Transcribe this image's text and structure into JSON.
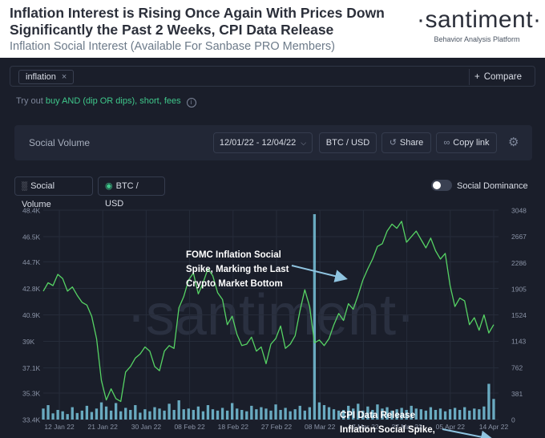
{
  "header": {
    "title": "Inflation Interest is Rising Once Again With Prices Down Significantly the Past 2 Weeks, CPI Data Release",
    "subtitle": "Inflation Social Interest (Available For Sanbase PRO Members)",
    "brand_name": "·santiment·",
    "brand_tagline": "Behavior Analysis Platform"
  },
  "search": {
    "chip_label": "inflation",
    "chip_close": "×",
    "compare_icon": "+",
    "compare_label": "Compare"
  },
  "hint": {
    "prefix": "Try out",
    "suggestion": "buy AND (dip OR dips), short, fees",
    "info_icon": "i"
  },
  "toolbar": {
    "panel_title": "Social Volume",
    "date_range": "12/01/22 - 12/04/22",
    "pair": "BTC / USD",
    "share_label": "Share",
    "copy_label": "Copy link",
    "gear_icon": "⚙"
  },
  "legend": {
    "social_volume": "Social Volume",
    "btc_usd": "BTC / USD",
    "social_dominance": "Social Dominance"
  },
  "colors": {
    "price_line": "#56d364",
    "volume_bars": "#78c3da",
    "annotation": "#ffffff",
    "arrow": "#8fc4e0",
    "accent": "#3fc88b"
  },
  "chart_data": {
    "type": "line",
    "title": "Social Volume",
    "watermark": "·santiment·",
    "x_tick_labels": [
      "12 Jan 22",
      "21 Jan 22",
      "30 Jan 22",
      "08 Feb 22",
      "18 Feb 22",
      "27 Feb 22",
      "08 Mar 22",
      "17 Mar 22",
      "27 Mar 22",
      "05 Apr 22",
      "14 Apr 22"
    ],
    "y_left_tick_labels": [
      "48.4K",
      "46.5K",
      "44.7K",
      "42.8K",
      "40.9K",
      "39K",
      "37.1K",
      "35.3K",
      "33.4K"
    ],
    "y_left_ticks": [
      48400,
      46500,
      44700,
      42800,
      40900,
      39000,
      37100,
      35300,
      33400
    ],
    "y_left_range": [
      33400,
      48400
    ],
    "y_right_tick_labels": [
      "3048",
      "2667",
      "2286",
      "1905",
      "1524",
      "1143",
      "762",
      "381",
      "0"
    ],
    "y_right_ticks": [
      3048,
      2667,
      2286,
      1905,
      1524,
      1143,
      762,
      381,
      0
    ],
    "y_right_range": [
      0,
      3048
    ],
    "x_range": [
      0,
      94
    ],
    "series": [
      {
        "name": "BTC / USD",
        "axis": "left",
        "type": "line",
        "x": [
          0,
          1,
          2,
          3,
          4,
          5,
          6,
          7,
          8,
          9,
          10,
          11,
          12,
          13,
          14,
          15,
          16,
          17,
          18,
          19,
          20,
          21,
          22,
          23,
          24,
          25,
          26,
          27,
          28,
          29,
          30,
          31,
          32,
          33,
          34,
          35,
          36,
          37,
          38,
          39,
          40,
          41,
          42,
          43,
          44,
          45,
          46,
          47,
          48,
          49,
          50,
          51,
          52,
          53,
          54,
          55,
          56,
          57,
          58,
          59,
          60,
          61,
          62,
          63,
          64,
          65,
          66,
          67,
          68,
          69,
          70,
          71,
          72,
          73,
          74,
          75,
          76,
          77,
          78,
          79,
          80,
          81,
          82,
          83,
          84,
          85,
          86,
          87,
          88,
          89,
          90,
          91,
          92,
          93
        ],
        "values": [
          42600,
          43200,
          43000,
          43800,
          43500,
          42600,
          42900,
          42300,
          41800,
          41600,
          40800,
          39200,
          36200,
          34800,
          35600,
          34900,
          34700,
          36800,
          37200,
          37800,
          38100,
          38600,
          38300,
          37200,
          36900,
          38300,
          38700,
          38500,
          41400,
          42200,
          43400,
          43900,
          42400,
          43200,
          44200,
          43700,
          42500,
          42000,
          40200,
          40800,
          39500,
          38700,
          38800,
          39300,
          38300,
          38600,
          37400,
          38800,
          39200,
          40100,
          38500,
          38800,
          39400,
          41200,
          42700,
          41500,
          38900,
          39100,
          38700,
          39200,
          40200,
          41000,
          40500,
          41700,
          41300,
          42300,
          43400,
          44200,
          44900,
          45800,
          46000,
          46900,
          47400,
          47100,
          47600,
          46100,
          46500,
          46900,
          46300,
          45700,
          46400,
          45500,
          44900,
          45300,
          43000,
          41500,
          42100,
          41900,
          40200,
          40700,
          39800,
          40900,
          39600,
          40200
        ]
      },
      {
        "name": "Social Volume",
        "axis": "right",
        "type": "bar",
        "x": [
          0,
          1,
          2,
          3,
          4,
          5,
          6,
          7,
          8,
          9,
          10,
          11,
          12,
          13,
          14,
          15,
          16,
          17,
          18,
          19,
          20,
          21,
          22,
          23,
          24,
          25,
          26,
          27,
          28,
          29,
          30,
          31,
          32,
          33,
          34,
          35,
          36,
          37,
          38,
          39,
          40,
          41,
          42,
          43,
          44,
          45,
          46,
          47,
          48,
          49,
          50,
          51,
          52,
          53,
          54,
          55,
          56,
          57,
          58,
          59,
          60,
          61,
          62,
          63,
          64,
          65,
          66,
          67,
          68,
          69,
          70,
          71,
          72,
          73,
          74,
          75,
          76,
          77,
          78,
          79,
          80,
          81,
          82,
          83,
          84,
          85,
          86,
          87,
          88,
          89,
          90,
          91,
          92,
          93
        ],
        "values": [
          160,
          210,
          90,
          140,
          120,
          80,
          180,
          95,
          130,
          200,
          110,
          160,
          250,
          190,
          130,
          240,
          120,
          170,
          140,
          210,
          100,
          150,
          120,
          180,
          160,
          130,
          230,
          140,
          280,
          150,
          160,
          140,
          190,
          120,
          210,
          150,
          130,
          170,
          130,
          240,
          160,
          140,
          120,
          200,
          150,
          180,
          160,
          130,
          220,
          140,
          170,
          120,
          150,
          200,
          130,
          180,
          2990,
          250,
          210,
          180,
          150,
          130,
          140,
          200,
          160,
          230,
          130,
          190,
          140,
          220,
          160,
          180,
          130,
          150,
          170,
          140,
          200,
          160,
          150,
          130,
          180,
          140,
          160,
          120,
          150,
          170,
          140,
          180,
          130,
          160,
          150,
          190,
          520,
          300
        ]
      }
    ],
    "annotations": [
      {
        "text": "FOMC Inflation Social Spike, Marking the Last Crypto Market Bottom"
      },
      {
        "text": "CPI Data Release Inflation Social Spike, Marking Another Bottom?"
      }
    ]
  }
}
